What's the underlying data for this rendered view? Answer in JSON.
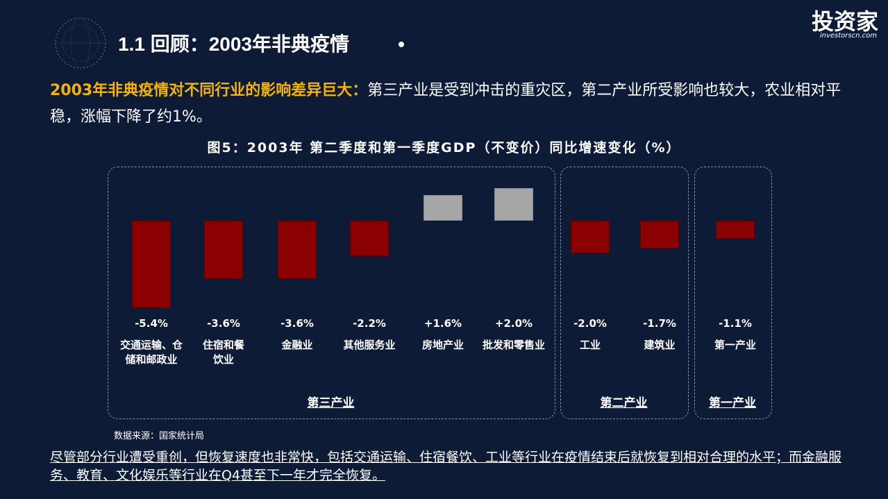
{
  "slide": {
    "title": "1.1 回顾：2003年非典疫情",
    "logo": "投资家",
    "logo_sub": "investorscn.com",
    "intro_highlight": "2003年非典疫情对不同行业的影响差异巨大：",
    "intro_text": "第三产业是受到冲击的重灾区，第二产业所受影响也较大，农业相对平稳，涨幅下降了约1%。",
    "source": "数据来源：国家统计局",
    "conclusion": "尽管部分行业遭受重创，但恢复速度也非常快，包括交通运输、住宿餐饮、工业等行业在疫情结束后就恢复到相对合理的水平；而金融服务、教育、文化娱乐等行业在Q4甚至下一年才完全恢复。"
  },
  "chart_data": {
    "type": "bar",
    "title": "图5：2003年 第二季度和第一季度GDP（不变价）同比增速变化（%）",
    "groups": [
      {
        "name": "第三产业",
        "categories": [
          "交通运输、仓储和邮政业",
          "住宿和餐饮业",
          "金融业",
          "其他服务业",
          "房地产业",
          "批发和零售业"
        ],
        "values": [
          -5.4,
          -3.6,
          -3.6,
          -2.2,
          1.6,
          2.0
        ],
        "value_labels": [
          "-5.4%",
          "-3.6%",
          "-3.6%",
          "-2.2%",
          "+1.6%",
          "+2.0%"
        ],
        "colors": [
          "#8b0000",
          "#8b0000",
          "#8b0000",
          "#8b0000",
          "#a6a6a6",
          "#a6a6a6"
        ]
      },
      {
        "name": "第二产业",
        "categories": [
          "工业",
          "建筑业"
        ],
        "values": [
          -2.0,
          -1.7
        ],
        "value_labels": [
          "-2.0%",
          "-1.7%"
        ],
        "colors": [
          "#8b0000",
          "#8b0000"
        ]
      },
      {
        "name": "第一产业",
        "categories": [
          "第一产业"
        ],
        "values": [
          -1.1
        ],
        "value_labels": [
          "-1.1%"
        ],
        "colors": [
          "#8b0000"
        ]
      }
    ]
  }
}
